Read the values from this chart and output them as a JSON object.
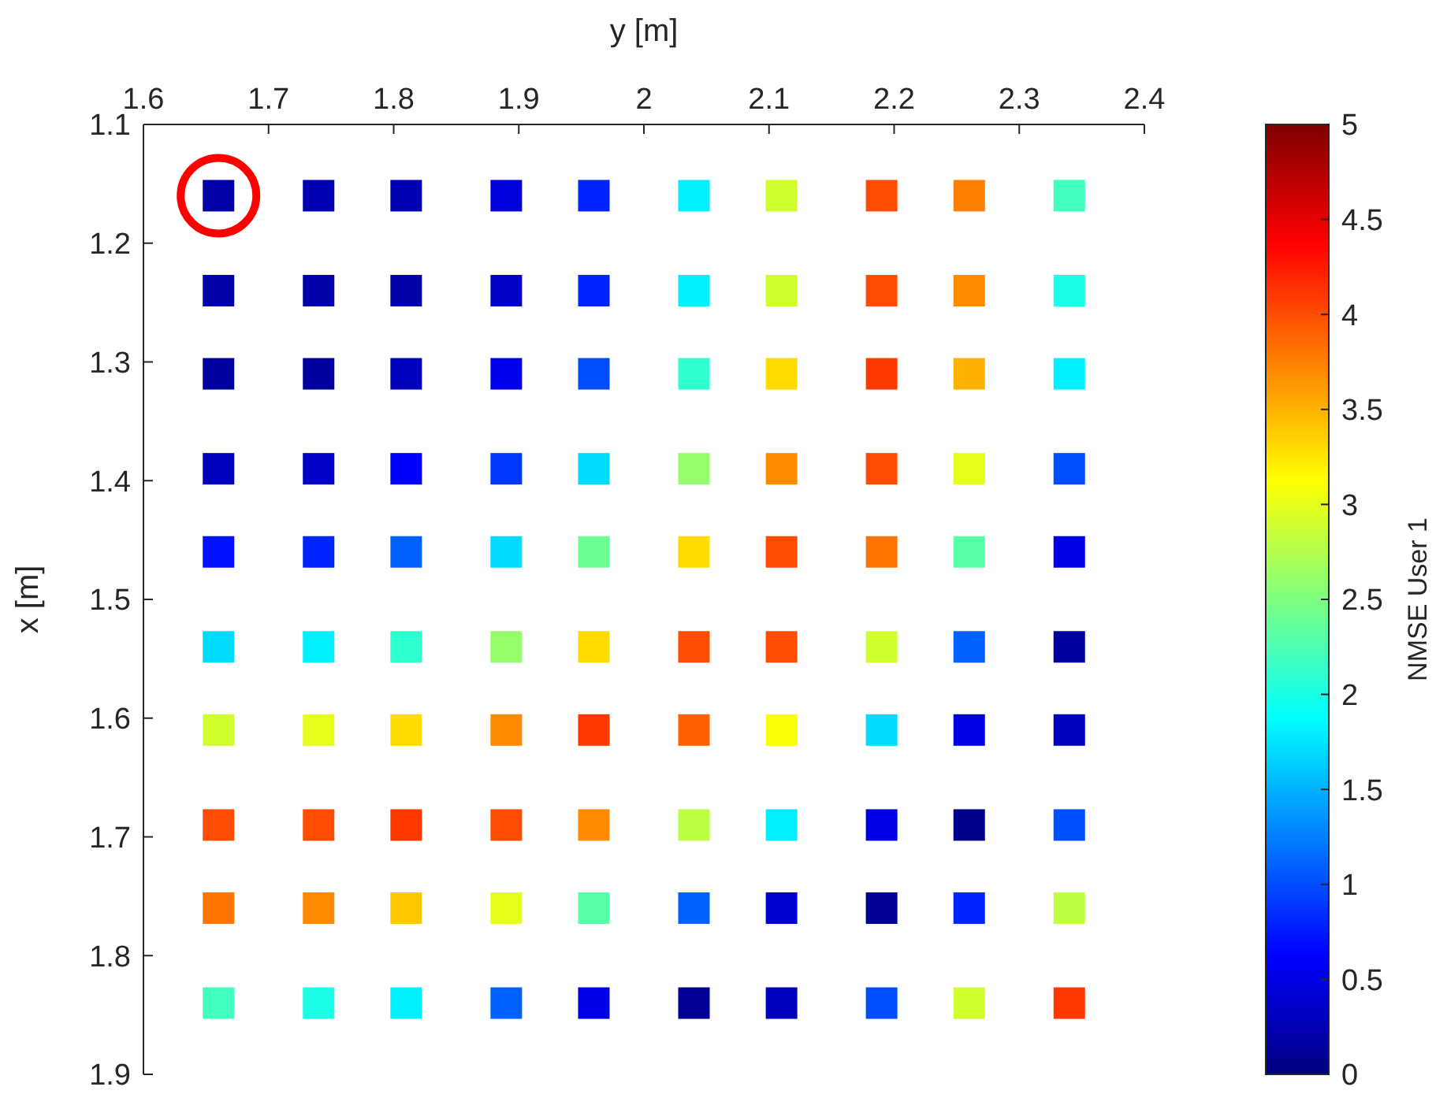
{
  "chart_data": {
    "type": "scatter",
    "xlabel": "y [m]",
    "ylabel": "x [m]",
    "clabel": "NMSE User 1",
    "marker": "square",
    "xlim": [
      1.6,
      2.4
    ],
    "xticks": [
      1.6,
      1.7,
      1.8,
      1.9,
      2,
      2.1,
      2.2,
      2.3,
      2.4
    ],
    "ylim": [
      1.9,
      1.1
    ],
    "yticks": [
      1.1,
      1.2,
      1.3,
      1.4,
      1.5,
      1.6,
      1.7,
      1.8,
      1.9
    ],
    "clim": [
      0,
      5
    ],
    "cticks": [
      0,
      0.5,
      1,
      1.5,
      2,
      2.5,
      3,
      3.5,
      4,
      4.5,
      5
    ],
    "grid": false,
    "x": [
      1.66,
      1.74,
      1.81,
      1.89,
      1.96,
      2.04,
      2.11,
      2.19,
      2.26,
      2.34,
      1.66,
      1.74,
      1.81,
      1.89,
      1.96,
      2.04,
      2.11,
      2.19,
      2.26,
      2.34,
      1.66,
      1.74,
      1.81,
      1.89,
      1.96,
      2.04,
      2.11,
      2.19,
      2.26,
      2.34,
      1.66,
      1.74,
      1.81,
      1.89,
      1.96,
      2.04,
      2.11,
      2.19,
      2.26,
      2.34,
      1.66,
      1.74,
      1.81,
      1.89,
      1.96,
      2.04,
      2.11,
      2.19,
      2.26,
      2.34,
      1.66,
      1.74,
      1.81,
      1.89,
      1.96,
      2.04,
      2.11,
      2.19,
      2.26,
      2.34,
      1.66,
      1.74,
      1.81,
      1.89,
      1.96,
      2.04,
      2.11,
      2.19,
      2.26,
      2.34,
      1.66,
      1.74,
      1.81,
      1.89,
      1.96,
      2.04,
      2.11,
      2.19,
      2.26,
      2.34,
      1.66,
      1.74,
      1.81,
      1.89,
      1.96,
      2.04,
      2.11,
      2.19,
      2.26,
      2.34,
      1.66,
      1.74,
      1.81,
      1.89,
      1.96,
      2.04,
      2.11,
      2.19,
      2.26,
      2.34
    ],
    "values": [
      1.16,
      1.16,
      1.16,
      1.16,
      1.16,
      1.16,
      1.16,
      1.16,
      1.16,
      1.16,
      1.24,
      1.24,
      1.24,
      1.24,
      1.24,
      1.24,
      1.24,
      1.24,
      1.24,
      1.24,
      1.31,
      1.31,
      1.31,
      1.31,
      1.31,
      1.31,
      1.31,
      1.31,
      1.31,
      1.31,
      1.39,
      1.39,
      1.39,
      1.39,
      1.39,
      1.39,
      1.39,
      1.39,
      1.39,
      1.39,
      1.46,
      1.46,
      1.46,
      1.46,
      1.46,
      1.46,
      1.46,
      1.46,
      1.46,
      1.46,
      1.54,
      1.54,
      1.54,
      1.54,
      1.54,
      1.54,
      1.54,
      1.54,
      1.54,
      1.54,
      1.61,
      1.61,
      1.61,
      1.61,
      1.61,
      1.61,
      1.61,
      1.61,
      1.61,
      1.61,
      1.69,
      1.69,
      1.69,
      1.69,
      1.69,
      1.69,
      1.69,
      1.69,
      1.69,
      1.69,
      1.76,
      1.76,
      1.76,
      1.76,
      1.76,
      1.76,
      1.76,
      1.76,
      1.76,
      1.76,
      1.84,
      1.84,
      1.84,
      1.84,
      1.84,
      1.84,
      1.84,
      1.84,
      1.84,
      1.84
    ],
    "cvalues": [
      0.2,
      0.25,
      0.25,
      0.45,
      0.8,
      1.8,
      2.9,
      4.0,
      3.75,
      2.2,
      0.2,
      0.2,
      0.2,
      0.35,
      0.8,
      1.8,
      2.9,
      4.0,
      3.7,
      2.0,
      0.15,
      0.15,
      0.3,
      0.55,
      1.0,
      2.1,
      3.3,
      4.1,
      3.5,
      1.8,
      0.3,
      0.35,
      0.6,
      0.9,
      1.7,
      2.6,
      3.7,
      4.0,
      3.0,
      1.0,
      0.7,
      0.8,
      1.1,
      1.7,
      2.4,
      3.3,
      4.0,
      3.8,
      2.3,
      0.5,
      1.7,
      1.8,
      2.1,
      2.6,
      3.3,
      4.0,
      4.0,
      2.9,
      1.1,
      0.15,
      2.9,
      3.0,
      3.3,
      3.7,
      4.1,
      3.9,
      3.1,
      1.7,
      0.5,
      0.3,
      4.0,
      4.0,
      4.1,
      4.0,
      3.7,
      2.8,
      1.8,
      0.5,
      0.05,
      1.0,
      3.8,
      3.7,
      3.4,
      3.0,
      2.3,
      1.1,
      0.4,
      0.1,
      0.8,
      2.8,
      2.2,
      2.0,
      1.8,
      1.1,
      0.5,
      0.1,
      0.3,
      1.0,
      2.9,
      4.1
    ]
  }
}
